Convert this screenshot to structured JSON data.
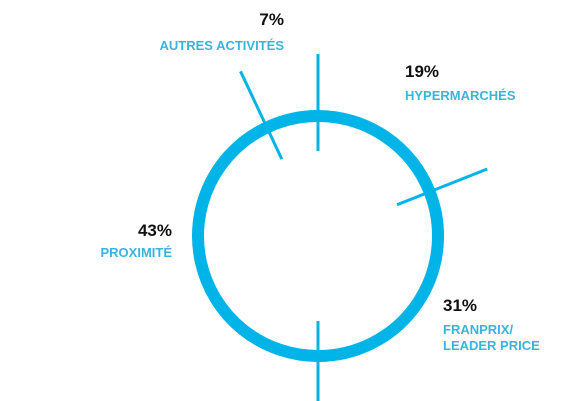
{
  "chart_data": {
    "type": "donut",
    "categories": [
      "HYPERMARCHÉS",
      "FRANPRIX/ LEADER PRICE",
      "PROXIMITÉ",
      "AUTRES ACTIVITÉS"
    ],
    "values": [
      19,
      31,
      43,
      7
    ],
    "value_labels": [
      "19%",
      "31%",
      "43%",
      "7%"
    ],
    "color": "#00b4e8"
  }
}
